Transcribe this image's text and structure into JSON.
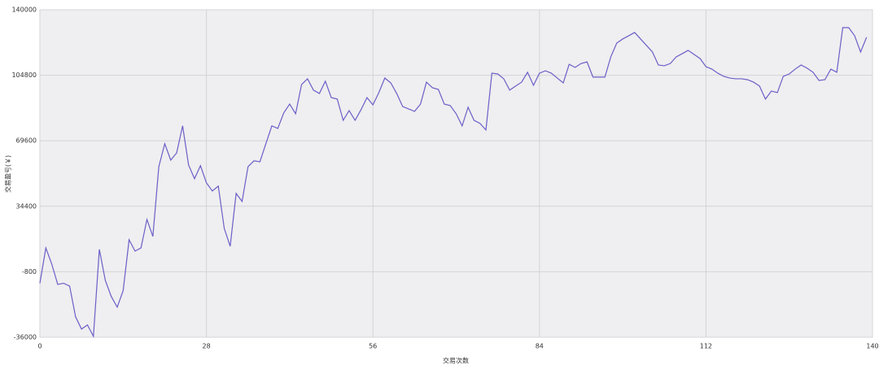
{
  "chart_data": {
    "type": "line",
    "x_label": "交易次数",
    "y_label": "交易盈亏(￥)",
    "xlim": [
      0,
      140
    ],
    "xticks": [
      0,
      28,
      56,
      84,
      112,
      140
    ],
    "ylim": [
      -36000,
      140000
    ],
    "yticks": [
      -36000,
      -800,
      34400,
      69600,
      104800,
      140000
    ],
    "grid": true,
    "series": [
      {
        "color": "#6a5fc8",
        "x": [
          0,
          1,
          2,
          3,
          4,
          5,
          6,
          7,
          8,
          9,
          10,
          11,
          12,
          13,
          14,
          15,
          16,
          17,
          18,
          19,
          20,
          21,
          22,
          23,
          24,
          25,
          26,
          27,
          28,
          29,
          30,
          31,
          32,
          33,
          34,
          35,
          36,
          37,
          38,
          39,
          40,
          41,
          42,
          43,
          44,
          45,
          46,
          47,
          48,
          49,
          50,
          51,
          52,
          53,
          54,
          55,
          56,
          57,
          58,
          59,
          60,
          61,
          62,
          63,
          64,
          65,
          66,
          67,
          68,
          69,
          70,
          71,
          72,
          73,
          74,
          75,
          76,
          77,
          78,
          79,
          80,
          81,
          82,
          83,
          84,
          85,
          86,
          87,
          88,
          89,
          90,
          91,
          92,
          93,
          94,
          95,
          96,
          97,
          98,
          99,
          100,
          101,
          102,
          103,
          104,
          105,
          106,
          107,
          108,
          109,
          110,
          111,
          112,
          113,
          114,
          115,
          116,
          117,
          118,
          119,
          120,
          121,
          122,
          123,
          124,
          125,
          126,
          127,
          128,
          129,
          130,
          131,
          132,
          133,
          134,
          135,
          136,
          137,
          138,
          139
        ],
        "values": [
          -7000,
          12000,
          3300,
          -7600,
          -7000,
          -8500,
          -25000,
          -31600,
          -29400,
          -35500,
          11200,
          -5400,
          -14100,
          -19800,
          -11000,
          16400,
          10300,
          12000,
          27300,
          18200,
          55700,
          68000,
          59200,
          63100,
          77600,
          56600,
          49200,
          56200,
          47000,
          42600,
          45200,
          22500,
          12900,
          41300,
          37000,
          55700,
          58800,
          58300,
          68000,
          77600,
          76200,
          84500,
          89300,
          84100,
          99800,
          102900,
          96800,
          95000,
          101600,
          92800,
          92000,
          80600,
          85800,
          80600,
          86300,
          92800,
          88900,
          95500,
          103300,
          100700,
          95000,
          88000,
          86700,
          85400,
          89300,
          101100,
          98100,
          97200,
          89300,
          88500,
          84100,
          77600,
          87600,
          80600,
          78900,
          75400,
          105900,
          105500,
          102900,
          96800,
          99000,
          101100,
          106400,
          99400,
          105900,
          107200,
          105900,
          103300,
          100700,
          110700,
          109000,
          111100,
          112000,
          103800,
          103800,
          103800,
          114700,
          122100,
          124300,
          126000,
          127800,
          124300,
          120800,
          117300,
          110300,
          109900,
          111100,
          114700,
          116400,
          118200,
          116000,
          113800,
          109400,
          108100,
          105900,
          104200,
          103300,
          102900,
          102900,
          102400,
          101100,
          99000,
          92000,
          96300,
          95500,
          104200,
          105500,
          108100,
          110300,
          108600,
          106400,
          102000,
          102400,
          108100,
          106400,
          130400,
          130400,
          126000,
          117300,
          125200
        ]
      }
    ]
  }
}
